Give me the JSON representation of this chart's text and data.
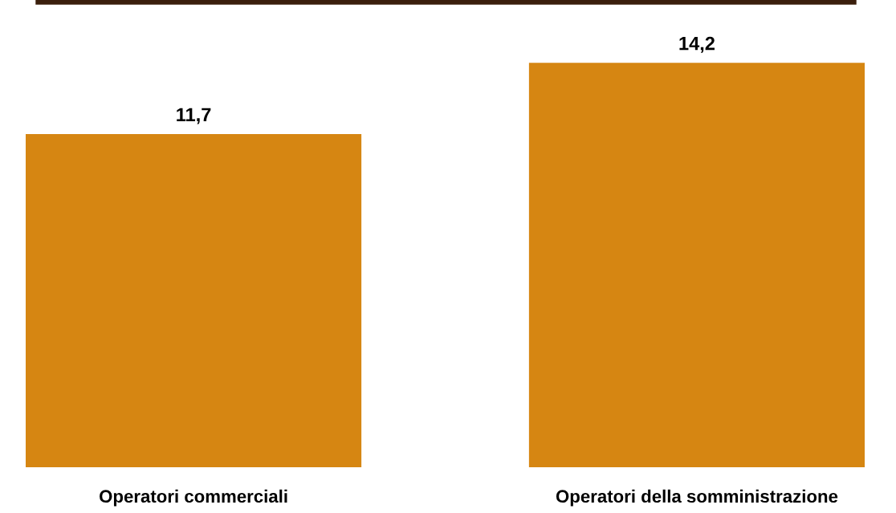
{
  "chart_data": {
    "type": "bar",
    "categories": [
      "Operatori commerciali",
      "Operatori della somministrazione"
    ],
    "values": [
      11.7,
      14.2
    ],
    "value_labels": [
      "11,7",
      "14,2"
    ],
    "color": "#d68612",
    "grid": false,
    "legend": false
  }
}
